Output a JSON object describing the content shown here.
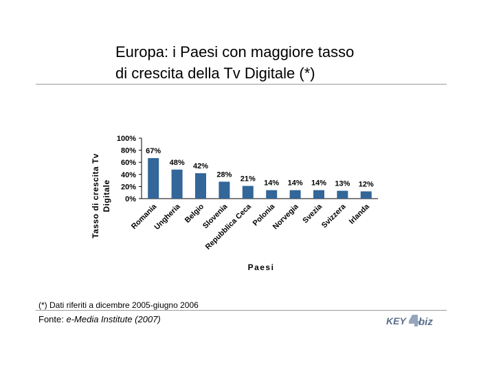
{
  "title": {
    "line1": "Europa: i Paesi con maggiore tasso",
    "line2": "di crescita della Tv Digitale (*)"
  },
  "chart_data": {
    "type": "bar",
    "categories": [
      "Romania",
      "Ungheria",
      "Belgio",
      "Slovenia",
      "Repubblica Ceca",
      "Polonia",
      "Norvegia",
      "Svezia",
      "Svizzera",
      "Irlanda"
    ],
    "values": [
      67,
      48,
      42,
      28,
      21,
      14,
      14,
      14,
      13,
      12
    ],
    "data_labels": [
      "67%",
      "48%",
      "42%",
      "28%",
      "21%",
      "14%",
      "14%",
      "14%",
      "13%",
      "12%"
    ],
    "yticks": [
      "0%",
      "20%",
      "40%",
      "60%",
      "80%",
      "100%"
    ],
    "ylim": [
      0,
      100
    ],
    "ylabel_line1": "Tasso di crescita Tv",
    "ylabel_line2": "Digitale",
    "xlabel": "Paesi",
    "bar_color": "#336699",
    "grid": false,
    "legend": "none"
  },
  "footnote": "(*) Dati riferiti a dicembre 2005-giugno 2006",
  "source": {
    "prefix": "Fonte: ",
    "name": "e-Media Institute (2007)"
  },
  "logo": {
    "text_left": "KEY",
    "text_right": "biz",
    "color_primary": "#5a6e8c",
    "color_accent": "#8fa0b8"
  }
}
